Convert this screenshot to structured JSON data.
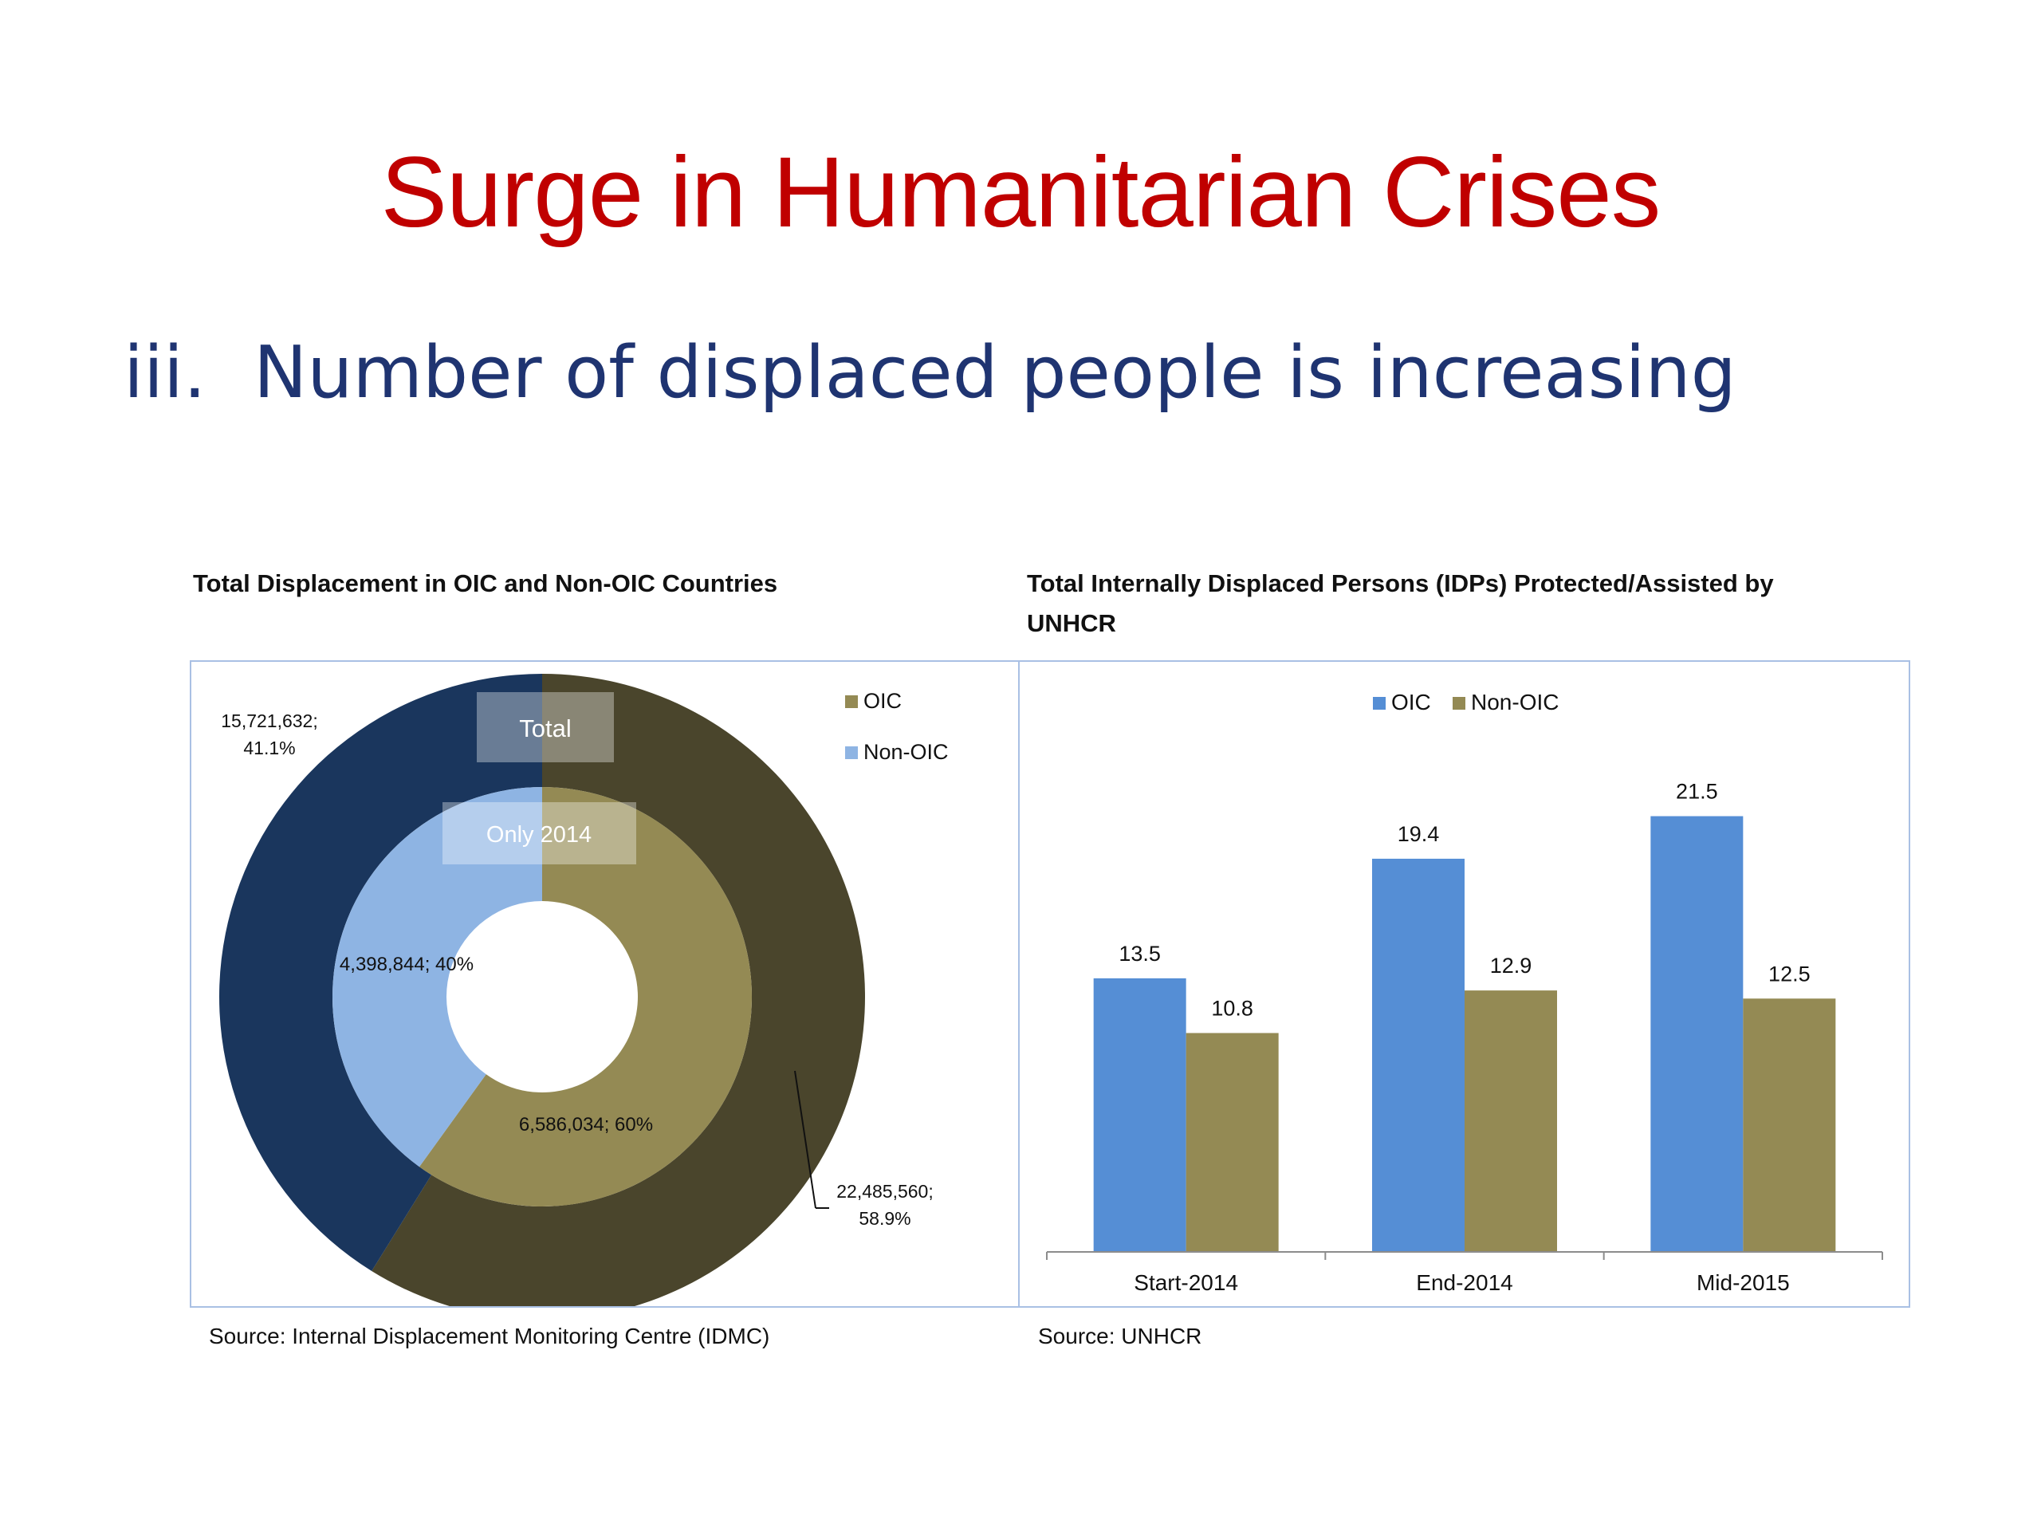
{
  "slide": {
    "title": "Surge in Humanitarian Crises",
    "bullet_number": "iii.",
    "bullet_text": "Number of displaced people is increasing"
  },
  "left_chart": {
    "title": "Total Displacement in OIC and Non-OIC Countries",
    "source": "Source: Internal Displacement Monitoring Centre (IDMC)"
  },
  "right_chart": {
    "title_line1": "Total Internally Displaced Persons (IDPs) Protected/Assisted by",
    "title_line2": "UNHCR",
    "source": "Source: UNHCR"
  },
  "chart_data": [
    {
      "type": "pie",
      "variant": "doughnut",
      "title": "Total Displacement in OIC and Non-OIC Countries",
      "legend": [
        "OIC",
        "Non-OIC"
      ],
      "legend_position": "top-right",
      "rings": [
        {
          "name": "Total",
          "slices": [
            {
              "label": "OIC",
              "value": 22485560,
              "percent": 58.9,
              "data_label": "22,485,560;",
              "data_label_pct": "58.9%",
              "color": "#4a452c"
            },
            {
              "label": "Non-OIC",
              "value": 15721632,
              "percent": 41.1,
              "data_label": "15,721,632;",
              "data_label_pct": "41.1%",
              "color": "#1a365d"
            }
          ]
        },
        {
          "name": "Only 2014",
          "slices": [
            {
              "label": "OIC",
              "value": 6586034,
              "percent": 60,
              "data_label": "6,586,034; 60%",
              "color": "#948a54"
            },
            {
              "label": "Non-OIC",
              "value": 4398844,
              "percent": 40,
              "data_label": "4,398,844; 40%",
              "color": "#8eb4e3"
            }
          ]
        }
      ],
      "ring_labels": [
        "Total",
        "Only 2014"
      ]
    },
    {
      "type": "bar",
      "title": "Total Internally Displaced Persons (IDPs) Protected/Assisted by UNHCR",
      "categories": [
        "Start-2014",
        "End-2014",
        "Mid-2015"
      ],
      "series": [
        {
          "name": "OIC",
          "values": [
            13.5,
            19.4,
            21.5
          ],
          "color": "#558ed5"
        },
        {
          "name": "Non-OIC",
          "values": [
            10.8,
            12.9,
            12.5
          ],
          "color": "#948a54"
        }
      ],
      "ylim": [
        0,
        24
      ],
      "grid": false,
      "legend_position": "top"
    }
  ]
}
